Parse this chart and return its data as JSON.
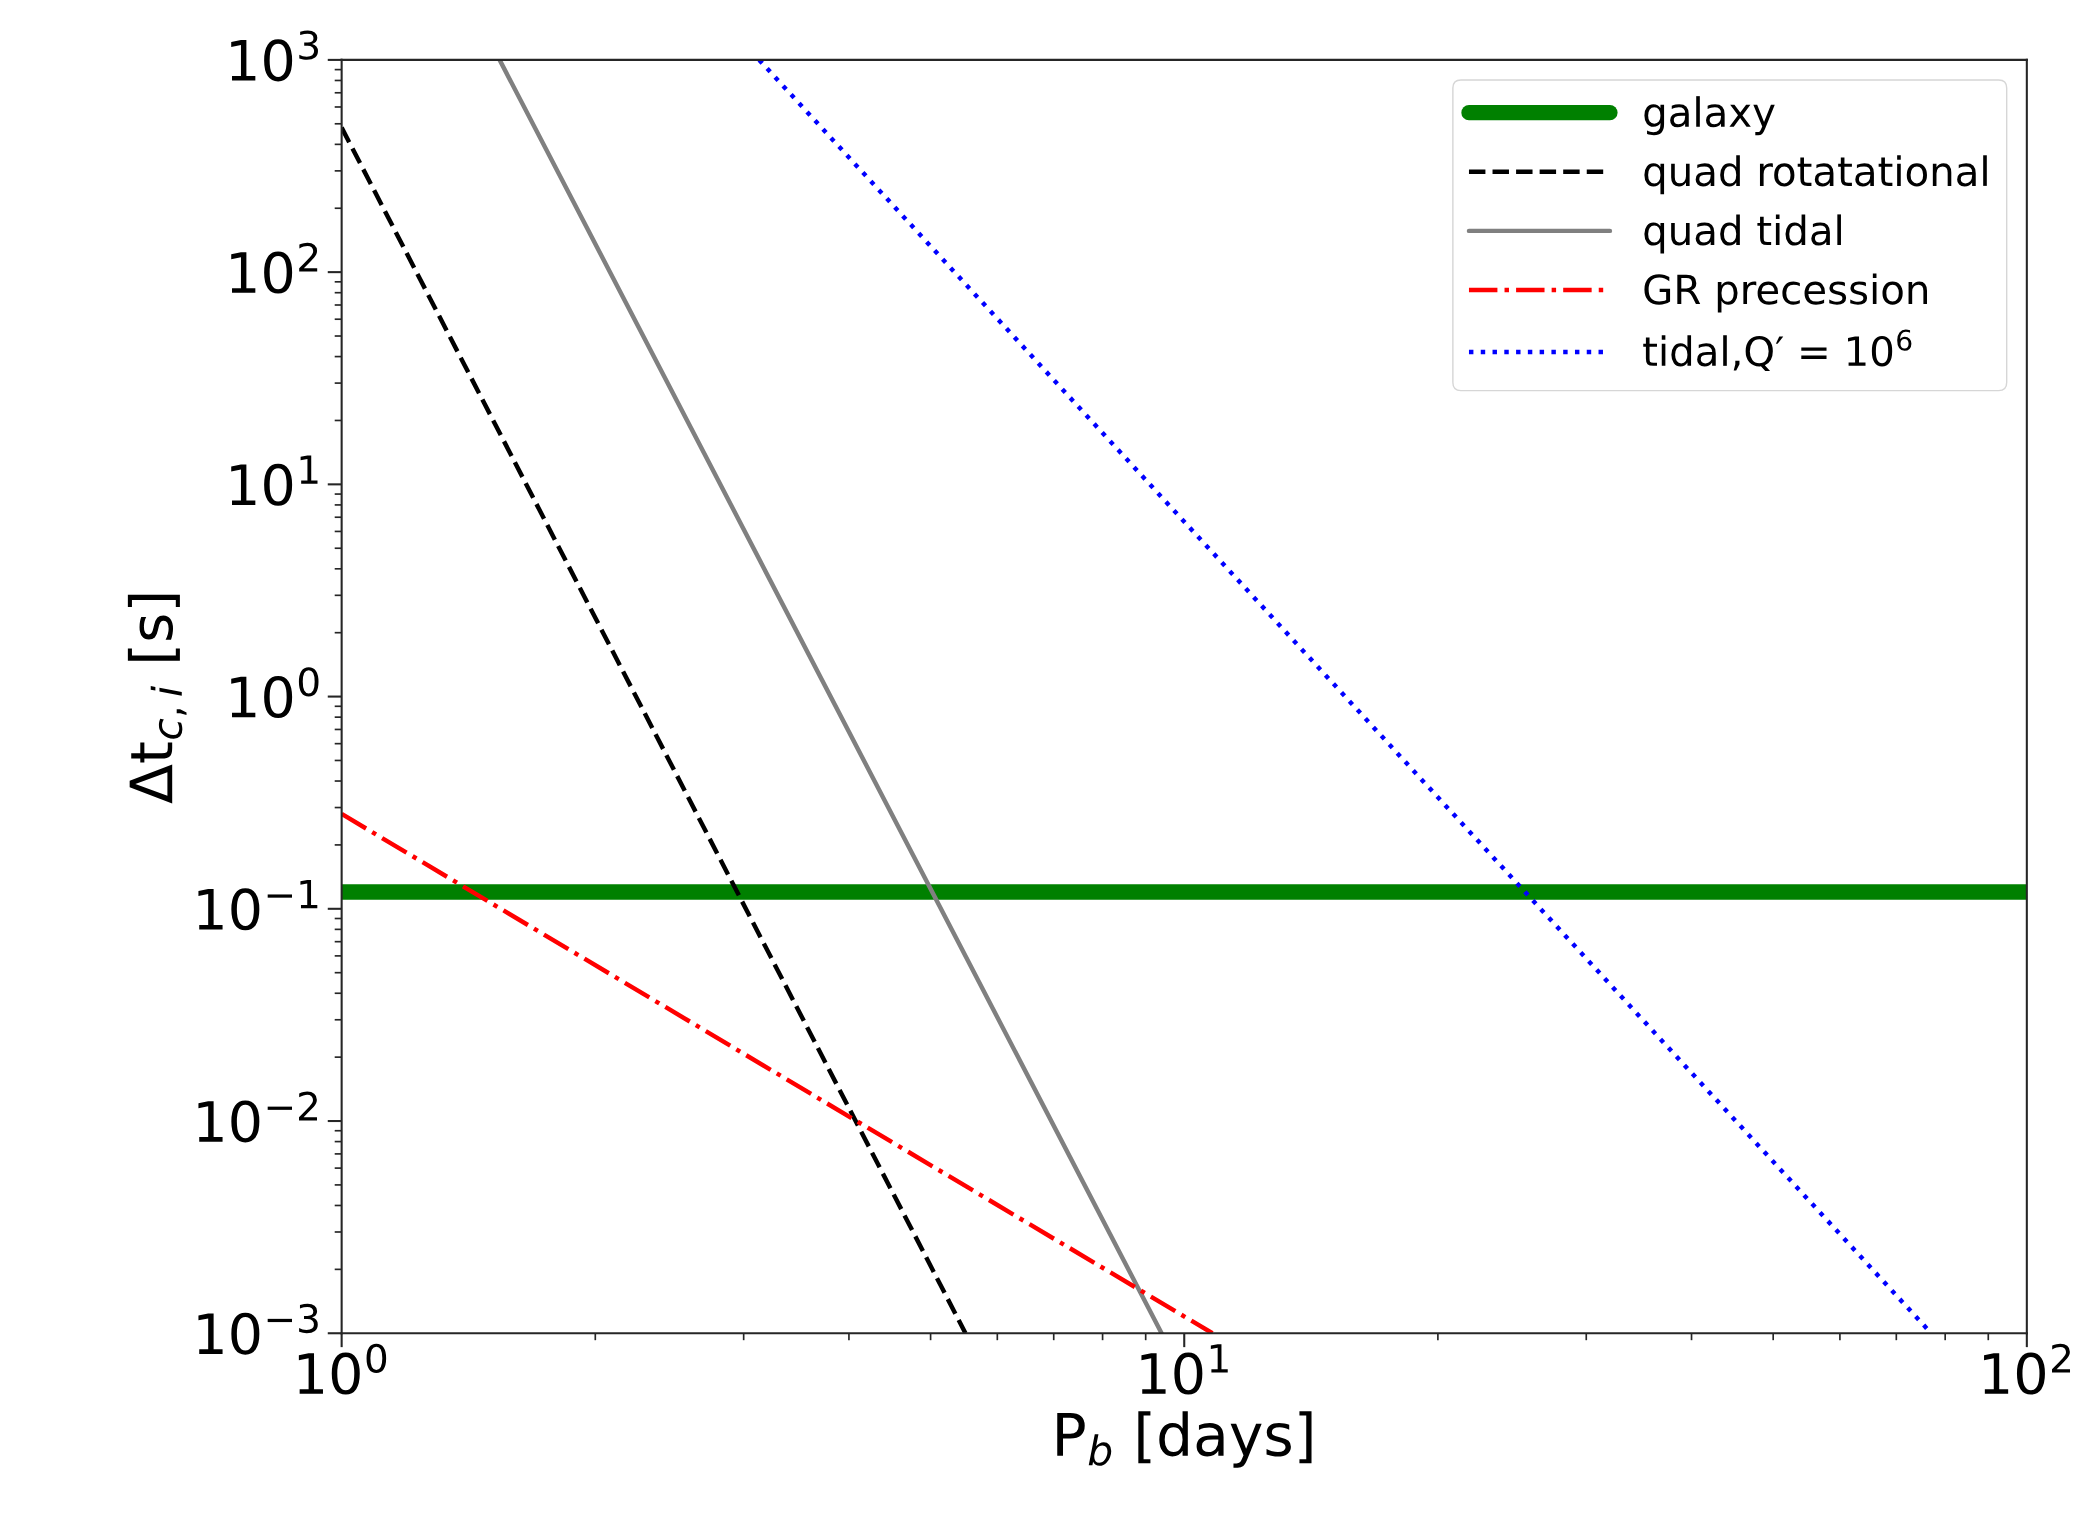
{
  "chart_data": {
    "type": "line",
    "xlabel": "P$_{b}$ [days]",
    "ylabel": "Δt$_{c,i}$ [s]",
    "log": "xy",
    "grid": false,
    "legend": "top right",
    "xlim": [
      1,
      100
    ],
    "ylim": [
      0.001,
      1000
    ],
    "xticks": [
      {
        "value": 1,
        "label": "10$^{0}$"
      },
      {
        "value": 10,
        "label": "10$^{1}$"
      },
      {
        "value": 100,
        "label": "10$^{2}$"
      }
    ],
    "yticks": [
      {
        "value": 0.001,
        "label": "10$^{−3}$"
      },
      {
        "value": 0.01,
        "label": "10$^{−2}$"
      },
      {
        "value": 0.1,
        "label": "10$^{−1}$"
      },
      {
        "value": 1,
        "label": "10$^{0}$"
      },
      {
        "value": 10,
        "label": "10$^{1}$"
      },
      {
        "value": 100,
        "label": "10$^{2}$"
      },
      {
        "value": 1000,
        "label": "10$^{3}$"
      }
    ],
    "series": [
      {
        "name": "galaxy",
        "color": "#008000",
        "line_style": "solid",
        "x": [
          1,
          100
        ],
        "values": [
          0.12,
          0.12
        ]
      },
      {
        "name": "quad rotatational",
        "color": "#000000",
        "line_style": "dashed",
        "x": [
          1,
          5.5
        ],
        "values": [
          480,
          0.001
        ]
      },
      {
        "name": "quad tidal",
        "color": "#808080",
        "line_style": "solid",
        "x": [
          1.54,
          9.4
        ],
        "values": [
          1000,
          0.001
        ]
      },
      {
        "name": "GR precession",
        "color": "#ff0000",
        "line_style": "dashdot",
        "x": [
          1,
          10.8
        ],
        "values": [
          0.28,
          0.001
        ]
      },
      {
        "name": "tidal,Q′ = 10$^{6}$",
        "color": "#0000ff",
        "line_style": "dotted",
        "x": [
          3.13,
          77
        ],
        "values": [
          1000,
          0.001
        ]
      }
    ]
  }
}
